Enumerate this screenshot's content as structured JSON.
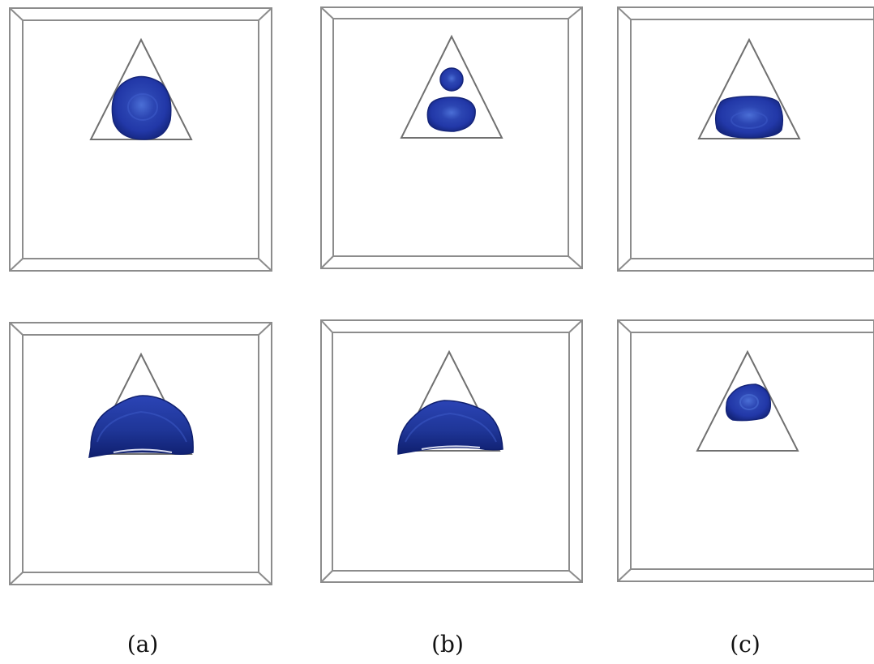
{
  "figure": {
    "columns": [
      {
        "label": "(a)"
      },
      {
        "label": "(b)"
      },
      {
        "label": "(c)"
      }
    ]
  },
  "colors": {
    "box_edge": "#8c8c8c",
    "triangle_edge": "#6e6e6e",
    "blob_dark": "#1b2f8f",
    "blob_light": "#3a5fd0"
  },
  "icons": {
    "box": "wireframe-box-icon",
    "triangle": "triangle-outline-icon",
    "blob": "blue-isosurface-blob"
  }
}
